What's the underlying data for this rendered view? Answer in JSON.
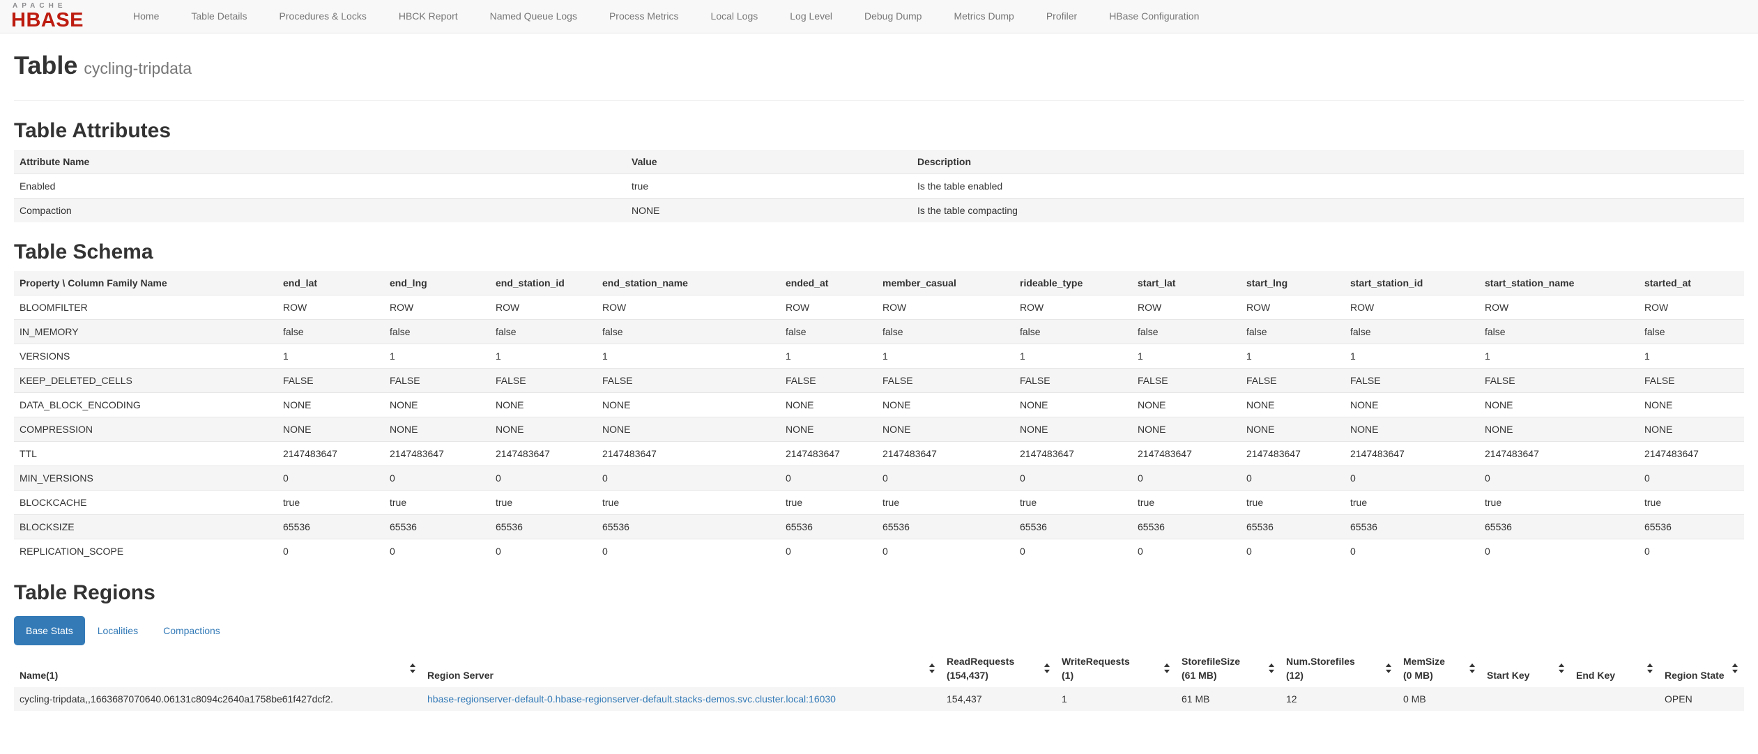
{
  "colors": {
    "accent_blue": "#337ab7",
    "logo_red": "#bd1c10",
    "logo_gray": "#8b8b8e",
    "navbar_bg": "#f8f8f8",
    "row_stripe": "#f5f5f5",
    "nav_text": "#777777"
  },
  "nav": {
    "logo_top": "APACHE",
    "logo_bottom": "HBASE",
    "items": [
      "Home",
      "Table Details",
      "Procedures & Locks",
      "HBCK Report",
      "Named Queue Logs",
      "Process Metrics",
      "Local Logs",
      "Log Level",
      "Debug Dump",
      "Metrics Dump",
      "Profiler",
      "HBase Configuration"
    ]
  },
  "page": {
    "title": "Table",
    "subtitle": "cycling-tripdata"
  },
  "attributes": {
    "heading": "Table Attributes",
    "columns": [
      "Attribute Name",
      "Value",
      "Description"
    ],
    "rows": [
      {
        "name": "Enabled",
        "value": "true",
        "description": "Is the table enabled"
      },
      {
        "name": "Compaction",
        "value": "NONE",
        "description": "Is the table compacting"
      }
    ]
  },
  "schema": {
    "heading": "Table Schema",
    "property_column": "Property \\ Column Family Name",
    "families": [
      "end_lat",
      "end_lng",
      "end_station_id",
      "end_station_name",
      "ended_at",
      "member_casual",
      "rideable_type",
      "start_lat",
      "start_lng",
      "start_station_id",
      "start_station_name",
      "started_at"
    ],
    "properties": [
      {
        "name": "BLOOMFILTER",
        "value": "ROW"
      },
      {
        "name": "IN_MEMORY",
        "value": "false"
      },
      {
        "name": "VERSIONS",
        "value": "1"
      },
      {
        "name": "KEEP_DELETED_CELLS",
        "value": "FALSE"
      },
      {
        "name": "DATA_BLOCK_ENCODING",
        "value": "NONE"
      },
      {
        "name": "COMPRESSION",
        "value": "NONE"
      },
      {
        "name": "TTL",
        "value": "2147483647"
      },
      {
        "name": "MIN_VERSIONS",
        "value": "0"
      },
      {
        "name": "BLOCKCACHE",
        "value": "true"
      },
      {
        "name": "BLOCKSIZE",
        "value": "65536"
      },
      {
        "name": "REPLICATION_SCOPE",
        "value": "0"
      }
    ]
  },
  "regions": {
    "heading": "Table Regions",
    "active_tab": "Base Stats",
    "tabs": [
      "Base Stats",
      "Localities",
      "Compactions"
    ],
    "columns": [
      {
        "label": "Name(1)"
      },
      {
        "label": "Region Server"
      },
      {
        "label": "ReadRequests",
        "sub": "(154,437)"
      },
      {
        "label": "WriteRequests",
        "sub": "(1)"
      },
      {
        "label": "StorefileSize",
        "sub": "(61 MB)"
      },
      {
        "label": "Num.Storefiles",
        "sub": "(12)"
      },
      {
        "label": "MemSize",
        "sub": "(0 MB)"
      },
      {
        "label": "Start Key"
      },
      {
        "label": "End Key"
      },
      {
        "label": "Region State"
      }
    ],
    "rows": [
      {
        "name": "cycling-tripdata,,1663687070640.06131c8094c2640a1758be61f427dcf2.",
        "region_server": "hbase-regionserver-default-0.hbase-regionserver-default.stacks-demos.svc.cluster.local:16030",
        "read_requests": "154,437",
        "write_requests": "1",
        "storefile_size": "61 MB",
        "num_storefiles": "12",
        "mem_size": "0 MB",
        "start_key": "",
        "end_key": "",
        "region_state": "OPEN"
      }
    ]
  }
}
